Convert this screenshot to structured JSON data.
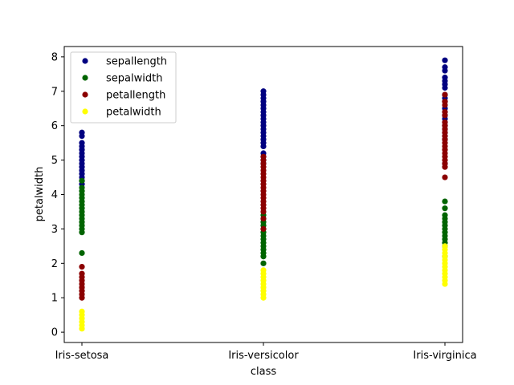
{
  "chart_data": {
    "type": "scatter",
    "xlabel": "class",
    "ylabel": "petalwidth",
    "categories": [
      "Iris-setosa",
      "Iris-versicolor",
      "Iris-virginica"
    ],
    "ylim": [
      -0.3,
      8.3
    ],
    "yticks": [
      0,
      1,
      2,
      3,
      4,
      5,
      6,
      7,
      8
    ],
    "grid": false,
    "legend_position": "top-left",
    "series": [
      {
        "name": "sepallength",
        "color": "#000080",
        "values": [
          [
            5.1,
            4.9,
            4.7,
            4.6,
            5.0,
            5.4,
            4.4,
            4.8,
            4.3,
            5.8,
            5.7,
            5.2,
            5.5,
            4.5,
            5.3
          ],
          [
            7.0,
            6.9,
            6.8,
            6.7,
            6.6,
            6.5,
            6.4,
            6.3,
            6.2,
            6.1,
            6.0,
            5.9,
            5.8,
            5.7,
            5.6,
            5.5,
            5.4,
            5.2,
            5.1,
            5.0,
            4.9
          ],
          [
            7.9,
            7.7,
            7.6,
            7.4,
            7.3,
            7.2,
            7.1,
            6.9,
            6.8,
            6.7,
            6.5,
            6.4,
            6.3,
            6.2,
            6.1,
            6.0,
            5.9,
            5.8,
            5.7,
            5.6,
            4.9
          ]
        ]
      },
      {
        "name": "sepalwidth",
        "color": "#006400",
        "values": [
          [
            4.4,
            4.2,
            4.1,
            4.0,
            3.9,
            3.8,
            3.7,
            3.6,
            3.5,
            3.4,
            3.3,
            3.2,
            3.1,
            3.0,
            2.9,
            2.3
          ],
          [
            3.4,
            3.3,
            3.2,
            3.1,
            3.0,
            2.9,
            2.8,
            2.7,
            2.6,
            2.5,
            2.4,
            2.3,
            2.2,
            2.0
          ],
          [
            3.8,
            3.6,
            3.4,
            3.3,
            3.2,
            3.1,
            3.0,
            2.9,
            2.8,
            2.7,
            2.6,
            2.5,
            2.2
          ]
        ]
      },
      {
        "name": "petallength",
        "color": "#8b0000",
        "values": [
          [
            1.9,
            1.7,
            1.6,
            1.5,
            1.4,
            1.3,
            1.2,
            1.1,
            1.0
          ],
          [
            5.1,
            5.0,
            4.9,
            4.8,
            4.7,
            4.6,
            4.5,
            4.4,
            4.3,
            4.2,
            4.1,
            4.0,
            3.9,
            3.8,
            3.7,
            3.6,
            3.5,
            3.3,
            3.0
          ],
          [
            6.9,
            6.7,
            6.6,
            6.4,
            6.3,
            6.1,
            6.0,
            5.9,
            5.8,
            5.7,
            5.6,
            5.5,
            5.4,
            5.3,
            5.2,
            5.1,
            5.0,
            4.9,
            4.8,
            4.5
          ]
        ]
      },
      {
        "name": "petalwidth",
        "color": "#ffff00",
        "values": [
          [
            0.6,
            0.5,
            0.4,
            0.3,
            0.2,
            0.1
          ],
          [
            1.8,
            1.7,
            1.6,
            1.5,
            1.4,
            1.3,
            1.2,
            1.1,
            1.0
          ],
          [
            2.5,
            2.4,
            2.3,
            2.2,
            2.1,
            2.0,
            1.9,
            1.8,
            1.7,
            1.6,
            1.5,
            1.4
          ]
        ]
      }
    ]
  }
}
